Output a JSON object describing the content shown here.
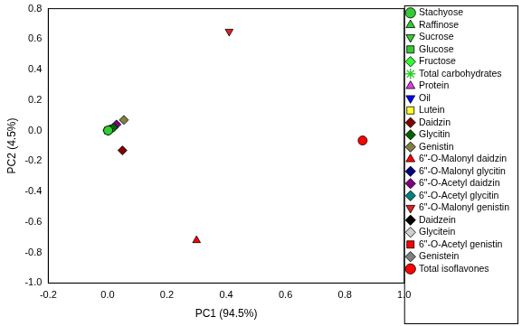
{
  "chart_data": {
    "type": "scatter",
    "x_label": "PC1 (94.5%)",
    "y_label": "PC2 (4.5%)",
    "xlim": [
      -0.2,
      1.0
    ],
    "xticks": [
      -0.2,
      {
        "value": 0,
        "label": "0.0"
      },
      0.2,
      0.4,
      0.6,
      0.8,
      {
        "value": 1.0,
        "label": "1.0"
      }
    ],
    "ylim": [
      -1.0,
      0.8
    ],
    "yticks": [
      {
        "value": -1.0,
        "label": "-1.0"
      },
      -0.8,
      -0.6,
      -0.4,
      -0.2,
      {
        "value": 0,
        "label": "0.0"
      },
      0.2,
      0.4,
      0.6,
      0.8
    ],
    "grid": false,
    "legend": "right",
    "series": [
      {
        "name": "Stachyose",
        "color": "#33cc33",
        "marker": "circle",
        "x": [
          0.002
        ],
        "y": [
          0.001
        ]
      },
      {
        "name": "Raffinose",
        "color": "#33cc33",
        "marker": "triangle",
        "x": [
          0.002
        ],
        "y": [
          0.002
        ]
      },
      {
        "name": "Sucrose",
        "color": "#33cc33",
        "marker": "triangle-down",
        "x": [
          0.004
        ],
        "y": [
          0.0
        ]
      },
      {
        "name": "Glucose",
        "color": "#33cc33",
        "marker": "square",
        "x": [
          0.001
        ],
        "y": [
          0.001
        ]
      },
      {
        "name": "Fructose",
        "color": "#33ff33",
        "marker": "diamond",
        "x": [
          0.001
        ],
        "y": [
          0.0
        ]
      },
      {
        "name": "Total carbohydrates",
        "color": "#33cc33",
        "marker": "star",
        "x": [
          0.005
        ],
        "y": [
          0.002
        ]
      },
      {
        "name": "Protein",
        "color": "#e040e0",
        "marker": "triangle",
        "x": [
          0.003
        ],
        "y": [
          0.001
        ]
      },
      {
        "name": "Oil",
        "color": "#0000ff",
        "marker": "triangle-down",
        "x": [
          0.001
        ],
        "y": [
          0.0
        ]
      },
      {
        "name": "Lutein",
        "color": "#ffff33",
        "marker": "square",
        "x": [
          0.0
        ],
        "y": [
          0.0
        ]
      },
      {
        "name": "Daidzin",
        "color": "#800000",
        "marker": "diamond",
        "x": [
          0.05
        ],
        "y": [
          -0.13
        ]
      },
      {
        "name": "Glycitin",
        "color": "#006400",
        "marker": "diamond",
        "x": [
          0.02
        ],
        "y": [
          0.02
        ]
      },
      {
        "name": "Genistin",
        "color": "#808040",
        "marker": "diamond",
        "x": [
          0.055
        ],
        "y": [
          0.07
        ]
      },
      {
        "name": "6\"-O-Malonyl daidzin",
        "color": "#ff0000",
        "marker": "triangle",
        "x": [
          0.3
        ],
        "y": [
          -0.72
        ]
      },
      {
        "name": "6\"-O-Malonyl glycitin",
        "color": "#000080",
        "marker": "diamond",
        "x": [
          0.005
        ],
        "y": [
          0.005
        ]
      },
      {
        "name": "6\"-O-Acetyl daidzin",
        "color": "#800080",
        "marker": "diamond",
        "x": [
          0.03
        ],
        "y": [
          0.04
        ]
      },
      {
        "name": "6\"-O-Acetyl glycitin",
        "color": "#008080",
        "marker": "diamond",
        "x": [
          0.003
        ],
        "y": [
          0.003
        ]
      },
      {
        "name": "6\"-O-Malonyl genistin",
        "color": "#e02020",
        "marker": "triangle-down",
        "x": [
          0.41
        ],
        "y": [
          0.65
        ]
      },
      {
        "name": "Daidzein",
        "color": "#000000",
        "marker": "diamond",
        "x": [
          0.0
        ],
        "y": [
          0.0
        ]
      },
      {
        "name": "Glycitein",
        "color": "#d0d0d0",
        "marker": "diamond",
        "x": [
          0.006
        ],
        "y": [
          0.004
        ]
      },
      {
        "name": "6\"-O-Acetyl genistin",
        "color": "#ff0000",
        "marker": "square",
        "x": [
          0.002
        ],
        "y": [
          0.003
        ]
      },
      {
        "name": "Genistein",
        "color": "#808080",
        "marker": "diamond",
        "x": [
          0.01
        ],
        "y": [
          0.01
        ]
      },
      {
        "name": "Total isoflavones",
        "color": "#ff0000",
        "marker": "circle",
        "x": [
          0.86
        ],
        "y": [
          -0.065
        ]
      }
    ]
  }
}
